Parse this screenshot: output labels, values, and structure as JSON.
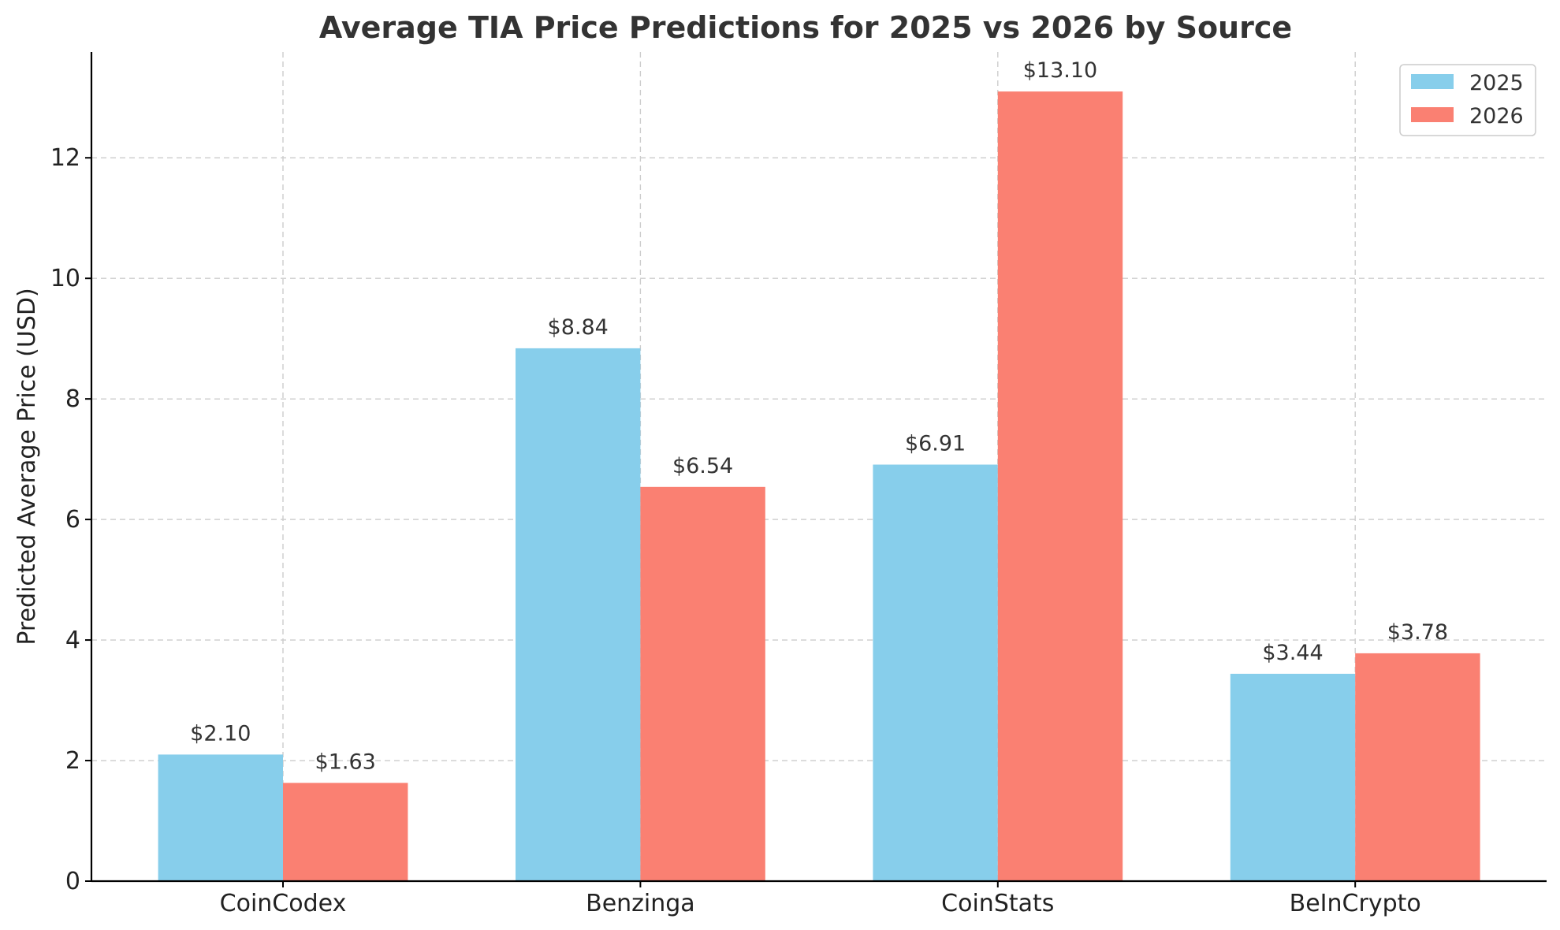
{
  "chart_data": {
    "type": "bar",
    "title": "Average TIA Price Predictions for 2025 vs 2026 by Source",
    "xlabel": "",
    "ylabel": "Predicted Average Price (USD)",
    "categories": [
      "CoinCodex",
      "Benzinga",
      "CoinStats",
      "BeInCrypto"
    ],
    "series": [
      {
        "name": "2025",
        "color": "#87CEEB",
        "values": [
          2.1,
          8.84,
          6.91,
          3.44
        ],
        "labels": [
          "$2.10",
          "$8.84",
          "$6.91",
          "$3.44"
        ]
      },
      {
        "name": "2026",
        "color": "#FA8072",
        "values": [
          1.63,
          6.54,
          13.1,
          3.78
        ],
        "labels": [
          "$1.63",
          "$6.54",
          "$13.10",
          "$3.78"
        ]
      }
    ],
    "ylim": [
      0,
      13.755
    ],
    "yticks": [
      0,
      2,
      4,
      6,
      8,
      10,
      12
    ],
    "grid": true,
    "legend": "top-right"
  }
}
